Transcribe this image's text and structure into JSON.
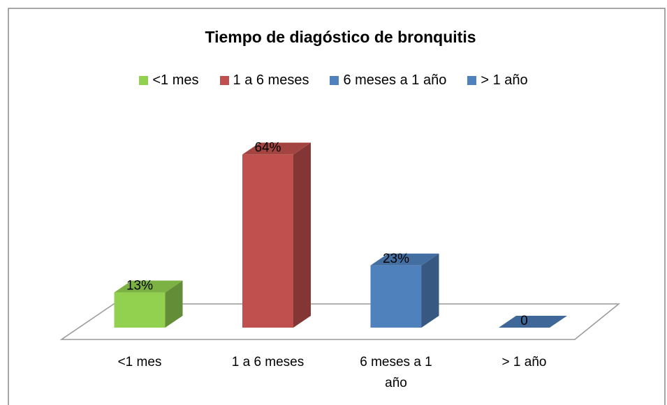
{
  "chart_data": {
    "type": "bar3d",
    "title": "Tiempo de diagóstico de bronquitis",
    "categories": [
      "<1 mes",
      "1 a 6 meses",
      "6 meses a 1 año",
      "> 1 año"
    ],
    "values": [
      13,
      64,
      23,
      0
    ],
    "value_labels": [
      "13%",
      "64%",
      "23%",
      "0"
    ],
    "colors": [
      "#92d050",
      "#c0504d",
      "#4f81bd",
      "#4f81bd"
    ]
  }
}
